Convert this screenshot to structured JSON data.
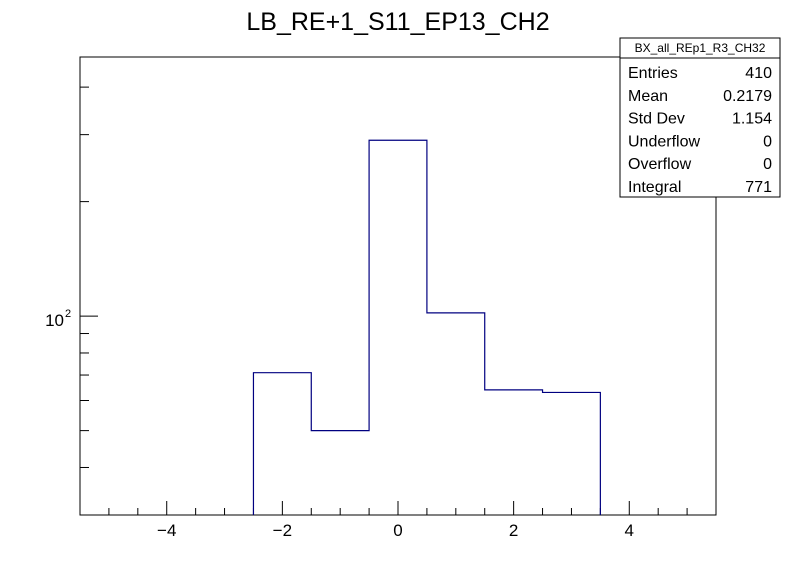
{
  "chart_data": {
    "type": "bar",
    "histogram_style": "step",
    "title": "LB_RE+1_S11_EP13_CH2",
    "xlabel": "",
    "ylabel": "",
    "xlim": [
      -5.5,
      5.5
    ],
    "ylim": [
      30,
      480
    ],
    "y_scale": "log",
    "grid": false,
    "line_color": "#000080",
    "bins": [
      {
        "x0": -2.5,
        "x1": -1.5,
        "y": 71
      },
      {
        "x0": -1.5,
        "x1": -0.5,
        "y": 50
      },
      {
        "x0": -0.5,
        "x1": 0.5,
        "y": 290
      },
      {
        "x0": 0.5,
        "x1": 1.5,
        "y": 102
      },
      {
        "x0": 1.5,
        "x1": 2.5,
        "y": 64
      },
      {
        "x0": 2.5,
        "x1": 3.5,
        "y": 63
      }
    ],
    "x_tick_labels": [
      {
        "value": -4,
        "label": "−4"
      },
      {
        "value": -2,
        "label": "−2"
      },
      {
        "value": 0,
        "label": "0"
      },
      {
        "value": 2,
        "label": "2"
      },
      {
        "value": 4,
        "label": "4"
      }
    ],
    "y_tick_labels": [
      {
        "value": 100,
        "base": "10",
        "exponent": "2"
      }
    ],
    "legend": "top-right",
    "stats_box": {
      "title": "BX_all_REp1_R3_CH32",
      "rows": [
        {
          "label": "Entries",
          "value": "410"
        },
        {
          "label": "Mean",
          "value": "0.2179"
        },
        {
          "label": "Std Dev",
          "value": "1.154"
        },
        {
          "label": "Underflow",
          "value": "0"
        },
        {
          "label": "Overflow",
          "value": "0"
        },
        {
          "label": "Integral",
          "value": "771"
        }
      ]
    }
  }
}
